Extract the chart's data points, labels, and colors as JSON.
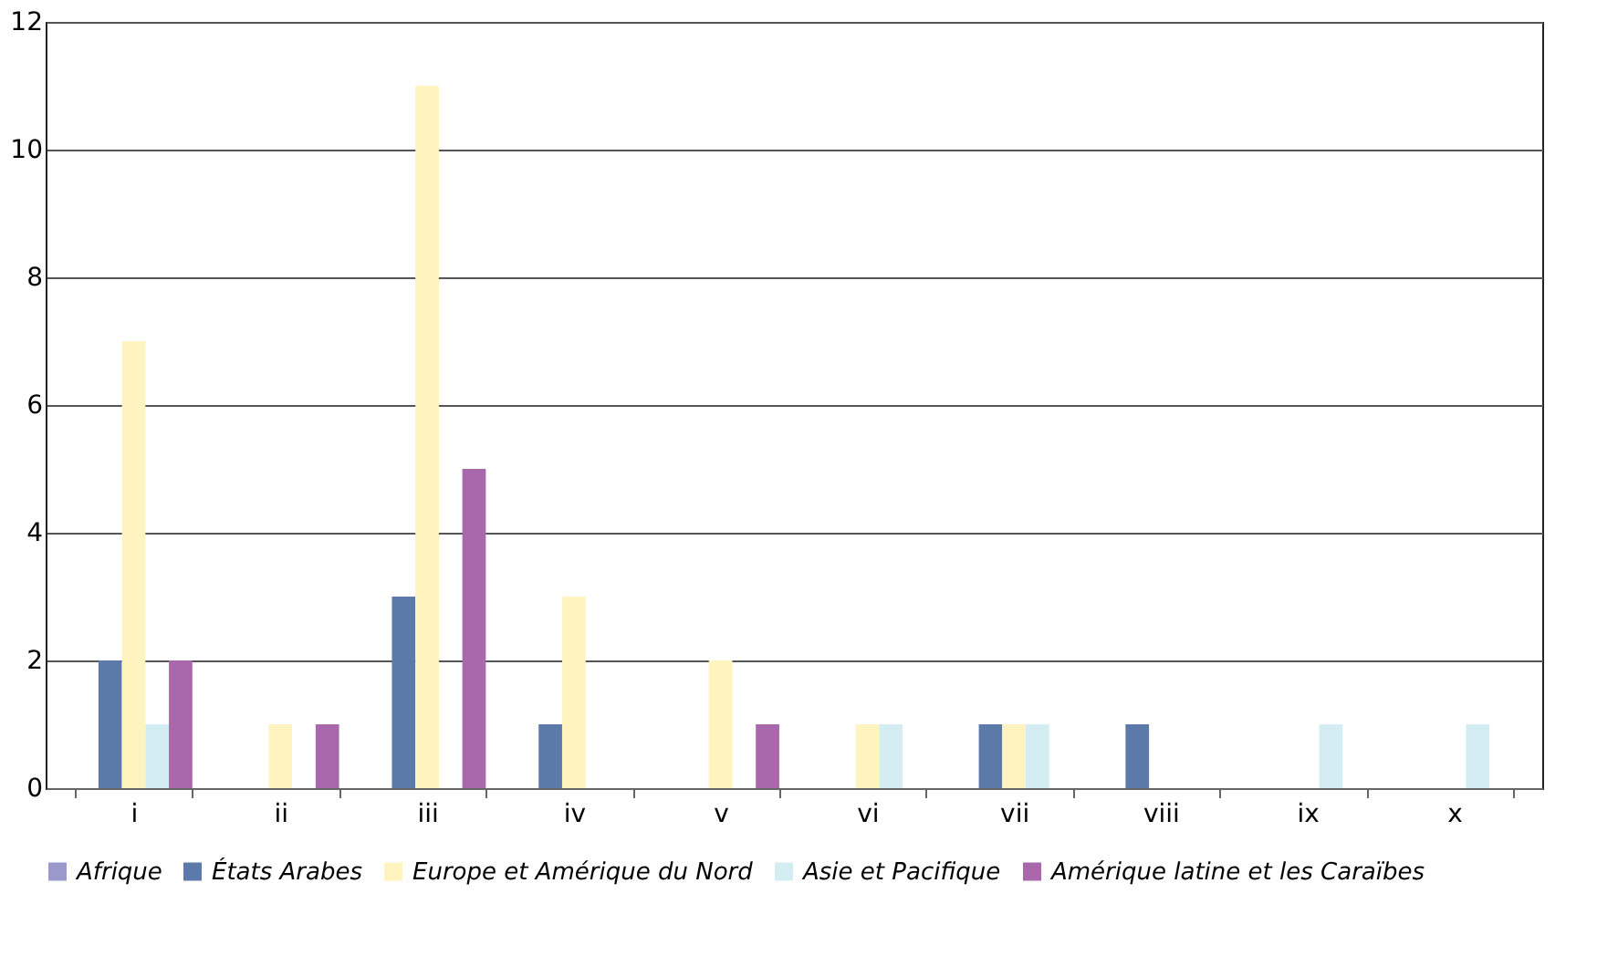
{
  "chart_data": {
    "type": "bar",
    "categories": [
      "i",
      "ii",
      "iii",
      "iv",
      "v",
      "vi",
      "vii",
      "viii",
      "ix",
      "x"
    ],
    "series": [
      {
        "name": "Afrique",
        "color": "#9b98cc",
        "values": [
          0,
          0,
          0,
          0,
          0,
          0,
          0,
          0,
          0,
          0
        ]
      },
      {
        "name": "États Arabes",
        "color": "#5b7aa9",
        "values": [
          2,
          0,
          3,
          1,
          0,
          0,
          1,
          1,
          0,
          0
        ]
      },
      {
        "name": "Europe et Amérique du Nord",
        "color": "#fff3c0",
        "values": [
          7,
          1,
          11,
          3,
          2,
          1,
          1,
          0,
          0,
          0
        ]
      },
      {
        "name": "Asie et Pacifique",
        "color": "#d3edf3",
        "values": [
          1,
          0,
          0,
          0,
          0,
          1,
          1,
          0,
          1,
          1
        ]
      },
      {
        "name": "Amérique latine et les Caraïbes",
        "color": "#a968ab",
        "values": [
          2,
          1,
          5,
          0,
          1,
          0,
          0,
          0,
          0,
          0
        ]
      }
    ],
    "ylim": [
      0,
      12
    ],
    "yticks": [
      0,
      2,
      4,
      6,
      8,
      10,
      12
    ],
    "grid": "y",
    "legend": "bottom"
  }
}
